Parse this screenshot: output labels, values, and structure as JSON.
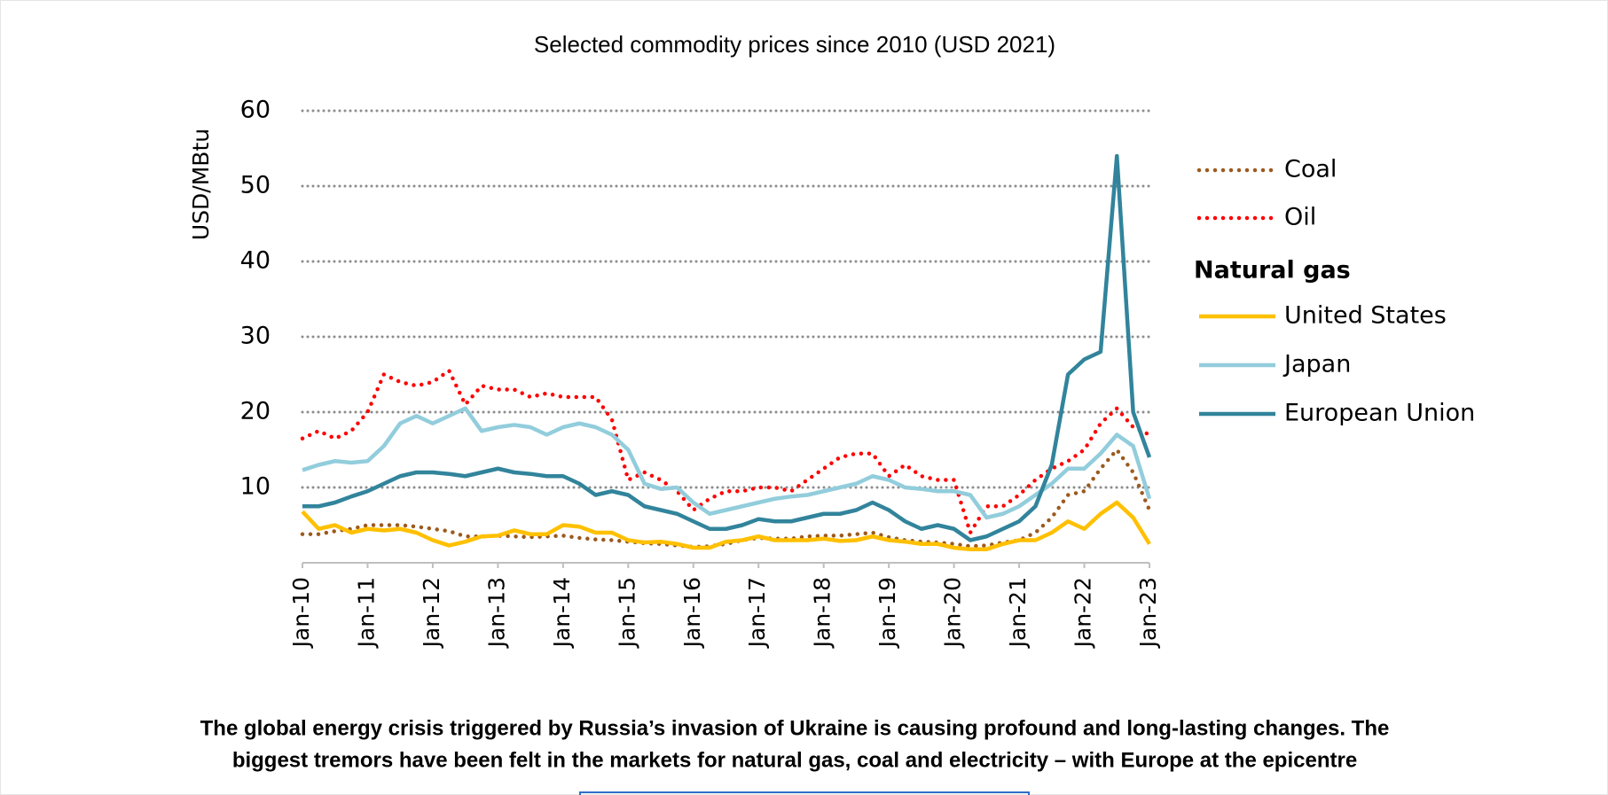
{
  "chart_data": {
    "type": "line",
    "title": "Selected commodity prices since 2010 (USD 2021)",
    "y_label": "USD/MBtu",
    "legend_heading": "Natural gas",
    "caption": [
      "The global energy crisis triggered by Russia’s invasion of Ukraine is causing profound and long-lasting changes. The",
      "biggest tremors have been felt in the markets for natural gas, coal and electricity – with Europe at the epicentre"
    ],
    "xlim": [
      2010,
      2023
    ],
    "xticks": [
      {
        "value": 2010,
        "label": "Jan-10"
      },
      {
        "value": 2011,
        "label": "Jan-11"
      },
      {
        "value": 2012,
        "label": "Jan-12"
      },
      {
        "value": 2013,
        "label": "Jan-13"
      },
      {
        "value": 2014,
        "label": "Jan-14"
      },
      {
        "value": 2015,
        "label": "Jan-15"
      },
      {
        "value": 2016,
        "label": "Jan-16"
      },
      {
        "value": 2017,
        "label": "Jan-17"
      },
      {
        "value": 2018,
        "label": "Jan-18"
      },
      {
        "value": 2019,
        "label": "Jan-19"
      },
      {
        "value": 2020,
        "label": "Jan-20"
      },
      {
        "value": 2021,
        "label": "Jan-21"
      },
      {
        "value": 2022,
        "label": "Jan-22"
      },
      {
        "value": 2023,
        "label": "Jan-23"
      }
    ],
    "ylim": [
      0,
      60
    ],
    "yticks": [
      10,
      20,
      30,
      40,
      50,
      60
    ],
    "grid": true,
    "legend": "right",
    "x": [
      2010,
      2010.25,
      2010.5,
      2010.75,
      2011,
      2011.25,
      2011.5,
      2011.75,
      2012,
      2012.25,
      2012.5,
      2012.75,
      2013,
      2013.25,
      2013.5,
      2013.75,
      2014,
      2014.25,
      2014.5,
      2014.75,
      2015,
      2015.25,
      2015.5,
      2015.75,
      2016,
      2016.25,
      2016.5,
      2016.75,
      2017,
      2017.25,
      2017.5,
      2017.75,
      2018,
      2018.25,
      2018.5,
      2018.75,
      2019,
      2019.25,
      2019.5,
      2019.75,
      2020,
      2020.25,
      2020.5,
      2020.75,
      2021,
      2021.25,
      2021.5,
      2021.75,
      2022,
      2022.25,
      2022.5,
      2022.75,
      2023
    ],
    "series": [
      {
        "name": "Coal",
        "color": "#9c5a1e",
        "style": "dotted",
        "values": [
          3.8,
          3.8,
          4.2,
          4.5,
          5.0,
          5.0,
          5.0,
          4.8,
          4.5,
          4.2,
          3.5,
          3.5,
          3.6,
          3.5,
          3.4,
          3.5,
          3.6,
          3.3,
          3.1,
          3.0,
          2.8,
          2.6,
          2.5,
          2.3,
          2.1,
          2.2,
          2.5,
          3.0,
          3.3,
          3.2,
          3.2,
          3.5,
          3.6,
          3.6,
          3.8,
          4.0,
          3.4,
          3.0,
          2.8,
          2.7,
          2.5,
          2.2,
          2.3,
          2.7,
          3.0,
          4.0,
          6.0,
          9.0,
          9.5,
          12.5,
          15.0,
          12.0,
          7.0
        ]
      },
      {
        "name": "Oil",
        "color": "#ff0000",
        "style": "dotted",
        "values": [
          16.5,
          17.5,
          16.5,
          17.5,
          20,
          25,
          24,
          23.5,
          24,
          25.5,
          21,
          23.5,
          23,
          23,
          22,
          22.5,
          22,
          22,
          22,
          19,
          11,
          12,
          11,
          9.5,
          7,
          8.5,
          9.5,
          9.5,
          10,
          10,
          9.5,
          11,
          12.5,
          14,
          14.5,
          14.5,
          11.5,
          13,
          11.5,
          11,
          11,
          4,
          7.5,
          7.5,
          9,
          11,
          12.5,
          13.5,
          15,
          18.5,
          20.5,
          18,
          17
        ]
      },
      {
        "name": "United States",
        "color": "#ffc000",
        "style": "solid",
        "values": [
          6.8,
          4.5,
          5.0,
          4.0,
          4.5,
          4.3,
          4.5,
          4.0,
          3.0,
          2.3,
          2.8,
          3.5,
          3.6,
          4.3,
          3.8,
          3.8,
          5.0,
          4.8,
          4.0,
          4.0,
          3.0,
          2.7,
          2.8,
          2.5,
          2.0,
          2.0,
          2.8,
          3.0,
          3.5,
          3.0,
          3.0,
          3.0,
          3.2,
          2.9,
          3.0,
          3.5,
          3.0,
          2.8,
          2.5,
          2.5,
          2.0,
          1.8,
          1.8,
          2.5,
          3.0,
          3.0,
          4.0,
          5.5,
          4.5,
          6.5,
          8.0,
          6.0,
          2.5
        ]
      },
      {
        "name": "Japan",
        "color": "#92cddc",
        "style": "solid",
        "values": [
          12.3,
          13.0,
          13.5,
          13.3,
          13.5,
          15.5,
          18.5,
          19.5,
          18.5,
          19.5,
          20.5,
          17.5,
          18,
          18.3,
          18.0,
          17.0,
          18.0,
          18.5,
          18.0,
          17.0,
          15.0,
          10.5,
          9.8,
          10.0,
          8.0,
          6.5,
          7.0,
          7.5,
          8.0,
          8.5,
          8.8,
          9.0,
          9.5,
          10.0,
          10.5,
          11.5,
          11.0,
          10.0,
          9.8,
          9.5,
          9.5,
          9.0,
          6.0,
          6.5,
          7.5,
          9.0,
          10.5,
          12.5,
          12.5,
          14.5,
          17.0,
          15.5,
          8.5
        ]
      },
      {
        "name": "European Union",
        "color": "#31849b",
        "style": "solid",
        "values": [
          7.5,
          7.5,
          8.0,
          8.8,
          9.5,
          10.5,
          11.5,
          12.0,
          12.0,
          11.8,
          11.5,
          12.0,
          12.5,
          12.0,
          11.8,
          11.5,
          11.5,
          10.5,
          9.0,
          9.5,
          9.0,
          7.5,
          7.0,
          6.5,
          5.5,
          4.5,
          4.5,
          5.0,
          5.8,
          5.5,
          5.5,
          6.0,
          6.5,
          6.5,
          7.0,
          8.0,
          7.0,
          5.5,
          4.5,
          5.0,
          4.5,
          3.0,
          3.5,
          4.5,
          5.5,
          7.5,
          13.0,
          25.0,
          27,
          28,
          54,
          20,
          14
        ]
      }
    ]
  }
}
